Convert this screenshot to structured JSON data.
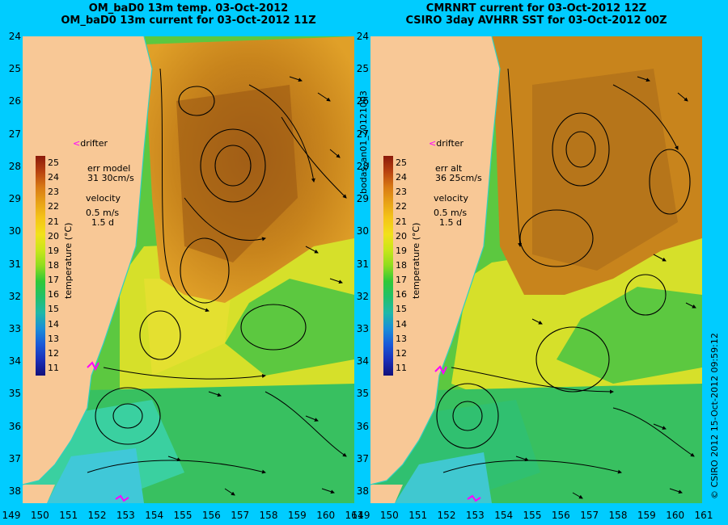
{
  "titles": {
    "left_line1": "OM_baD0 13m temp. 03-Oct-2012",
    "left_line2": "OM_baD0 13m current for 03-Oct-2012 11Z",
    "right_line1": "CMRNRT current for 03-Oct-2012 12Z",
    "right_line2": "CSIRO 3day AVHRR SST for 03-Oct-2012 00Z"
  },
  "side_labels": {
    "middle": "bodas_an01_20121003",
    "right": "© CSIRO 2012   15-Oct-2012 09:59:12"
  },
  "left_panel": {
    "drifter": "drifter",
    "err_label": "err model",
    "err_value": "31 30cm/s",
    "velocity_label": "velocity",
    "velocity_value": "0.5 m/s",
    "velocity_time": "1.5 d",
    "colorbar_label": "temperature (°C)"
  },
  "right_panel": {
    "drifter": "drifter",
    "err_label": "err alt",
    "err_value": "36 25cm/s",
    "velocity_label": "velocity",
    "velocity_value": "0.5 m/s",
    "velocity_time": "1.5 d",
    "colorbar_label": "temperature (°C)"
  },
  "colorbar_ticks": [
    "25",
    "24",
    "23",
    "22",
    "21",
    "20",
    "19",
    "18",
    "17",
    "16",
    "15",
    "14",
    "13",
    "12",
    "11"
  ],
  "colorbar_colors": [
    "#8b1a0a",
    "#b8420f",
    "#d97a14",
    "#e8a317",
    "#f5c518",
    "#f2e11a",
    "#c8e619",
    "#8fdc1e",
    "#2fc838",
    "#22c06a",
    "#1fb8a8",
    "#1a8ed8",
    "#1a5ad8",
    "#1a2fb8",
    "#12107a"
  ],
  "y_axis_labels": [
    "24",
    "25",
    "26",
    "27",
    "28",
    "29",
    "30",
    "31",
    "32",
    "33",
    "34",
    "35",
    "36",
    "37",
    "38"
  ],
  "x_axis_left": [
    "149",
    "150",
    "151",
    "152",
    "153",
    "154",
    "155",
    "156",
    "157",
    "158",
    "159",
    "160",
    "161"
  ],
  "x_axis_right": [
    "149",
    "150",
    "151",
    "152",
    "153",
    "154",
    "155",
    "156",
    "157",
    "158",
    "159",
    "160",
    "161"
  ],
  "colors": {
    "background": "#00ccff",
    "land": "#f8c896",
    "warm": "#c07a20",
    "mid": "#d8e030",
    "cool": "#30c068",
    "coastal": "#40d0c8",
    "drifter": "#ff00ff"
  }
}
